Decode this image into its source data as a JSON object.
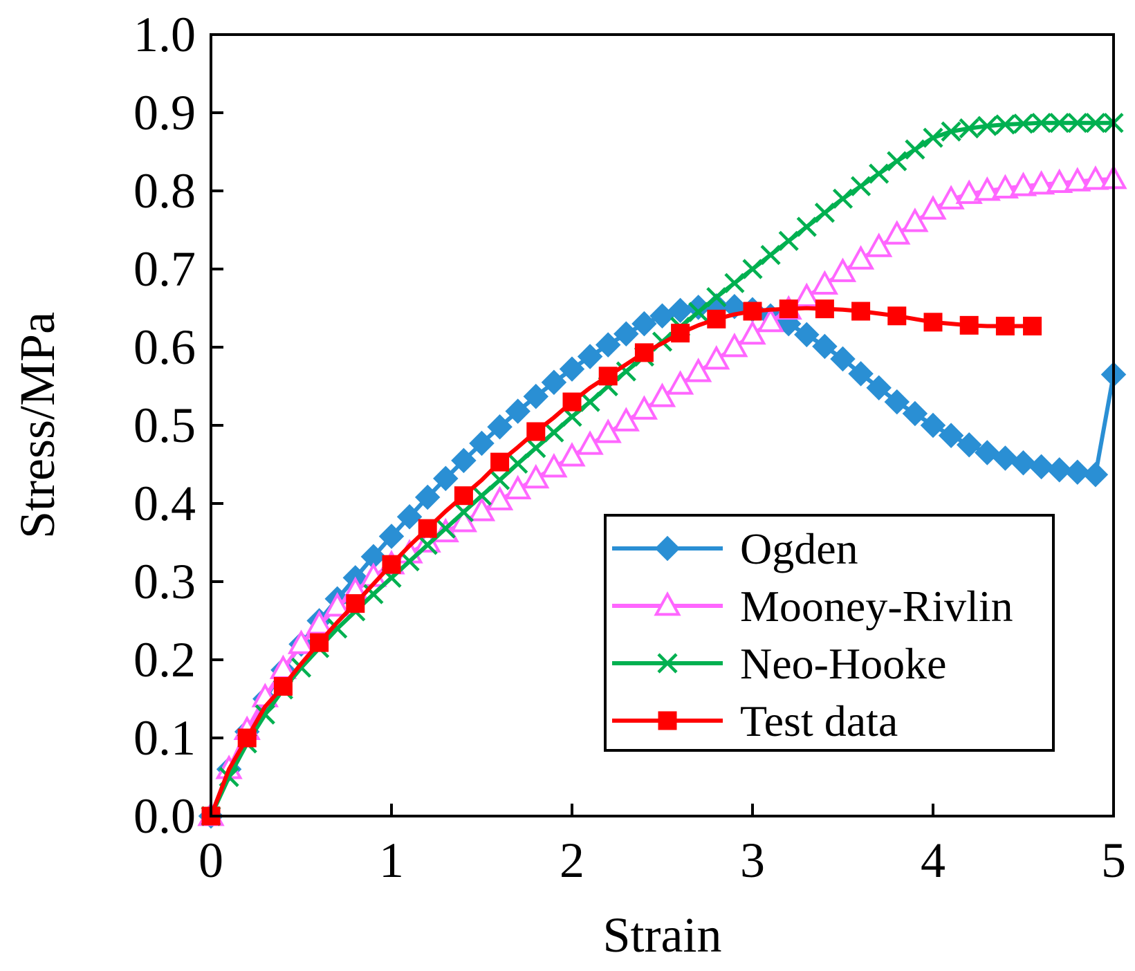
{
  "chart_data": {
    "type": "line",
    "title": "",
    "xlabel": "Strain",
    "ylabel": "Stress/MPa",
    "xlim": [
      0,
      5
    ],
    "ylim": [
      0,
      1.0
    ],
    "xticks": [
      0,
      1,
      2,
      3,
      4,
      5
    ],
    "yticks": [
      0.0,
      0.1,
      0.2,
      0.3,
      0.4,
      0.5,
      0.6,
      0.7,
      0.8,
      0.9,
      1.0
    ],
    "xtick_labels": [
      "0",
      "1",
      "2",
      "3",
      "4",
      "5"
    ],
    "ytick_labels": [
      "0.0",
      "0.1",
      "0.2",
      "0.3",
      "0.4",
      "0.5",
      "0.6",
      "0.7",
      "0.8",
      "0.9",
      "1.0"
    ],
    "grid": false,
    "legend_position": "bottom-right",
    "series": [
      {
        "name": "Ogden",
        "color": "#2a8fd4",
        "marker": "diamond",
        "x": [
          0,
          0.1,
          0.2,
          0.3,
          0.4,
          0.5,
          0.6,
          0.7,
          0.8,
          0.9,
          1.0,
          1.1,
          1.2,
          1.3,
          1.4,
          1.5,
          1.6,
          1.7,
          1.8,
          1.9,
          2.0,
          2.1,
          2.2,
          2.3,
          2.4,
          2.5,
          2.6,
          2.7,
          2.8,
          2.9,
          3.0,
          3.1,
          3.2,
          3.3,
          3.4,
          3.5,
          3.6,
          3.7,
          3.8,
          3.9,
          4.0,
          4.1,
          4.2,
          4.3,
          4.4,
          4.5,
          4.6,
          4.7,
          4.8,
          4.9,
          5.0
        ],
        "y": [
          0.0,
          0.06,
          0.108,
          0.15,
          0.187,
          0.22,
          0.25,
          0.278,
          0.305,
          0.332,
          0.358,
          0.383,
          0.408,
          0.432,
          0.455,
          0.477,
          0.498,
          0.518,
          0.537,
          0.555,
          0.572,
          0.588,
          0.603,
          0.617,
          0.63,
          0.64,
          0.647,
          0.651,
          0.653,
          0.652,
          0.648,
          0.64,
          0.63,
          0.616,
          0.601,
          0.585,
          0.566,
          0.548,
          0.53,
          0.515,
          0.5,
          0.487,
          0.475,
          0.465,
          0.458,
          0.452,
          0.447,
          0.443,
          0.44,
          0.437,
          0.565
        ]
      },
      {
        "name": "Mooney-Rivlin",
        "color": "#ff66ff",
        "marker": "triangle-open",
        "x": [
          0,
          0.1,
          0.2,
          0.3,
          0.4,
          0.5,
          0.6,
          0.7,
          0.8,
          0.9,
          1.0,
          1.1,
          1.2,
          1.3,
          1.4,
          1.5,
          1.6,
          1.7,
          1.8,
          1.9,
          2.0,
          2.1,
          2.2,
          2.3,
          2.4,
          2.5,
          2.6,
          2.7,
          2.8,
          2.9,
          3.0,
          3.1,
          3.2,
          3.3,
          3.4,
          3.5,
          3.6,
          3.7,
          3.8,
          3.9,
          4.0,
          4.1,
          4.2,
          4.3,
          4.4,
          4.5,
          4.6,
          4.7,
          4.8,
          4.9,
          5.0
        ],
        "y": [
          0.0,
          0.06,
          0.11,
          0.152,
          0.188,
          0.22,
          0.245,
          0.268,
          0.288,
          0.306,
          0.322,
          0.336,
          0.35,
          0.363,
          0.376,
          0.39,
          0.404,
          0.418,
          0.432,
          0.446,
          0.46,
          0.475,
          0.49,
          0.505,
          0.52,
          0.536,
          0.552,
          0.568,
          0.584,
          0.6,
          0.616,
          0.632,
          0.648,
          0.664,
          0.68,
          0.696,
          0.712,
          0.728,
          0.744,
          0.76,
          0.776,
          0.789,
          0.796,
          0.8,
          0.803,
          0.806,
          0.808,
          0.81,
          0.812,
          0.814,
          0.815
        ]
      },
      {
        "name": "Neo-Hooke",
        "color": "#00b050",
        "marker": "x",
        "x": [
          0,
          0.1,
          0.2,
          0.3,
          0.4,
          0.5,
          0.6,
          0.7,
          0.8,
          0.9,
          1.0,
          1.1,
          1.2,
          1.3,
          1.4,
          1.5,
          1.6,
          1.7,
          1.8,
          1.9,
          2.0,
          2.1,
          2.2,
          2.3,
          2.4,
          2.5,
          2.6,
          2.7,
          2.8,
          2.9,
          3.0,
          3.1,
          3.2,
          3.3,
          3.4,
          3.5,
          3.6,
          3.7,
          3.8,
          3.9,
          4.0,
          4.1,
          4.2,
          4.3,
          4.4,
          4.5,
          4.6,
          4.7,
          4.8,
          4.9,
          5.0
        ],
        "y": [
          0.0,
          0.05,
          0.093,
          0.13,
          0.162,
          0.19,
          0.215,
          0.24,
          0.262,
          0.284,
          0.305,
          0.326,
          0.347,
          0.368,
          0.389,
          0.41,
          0.43,
          0.451,
          0.471,
          0.491,
          0.511,
          0.53,
          0.55,
          0.569,
          0.588,
          0.607,
          0.626,
          0.645,
          0.664,
          0.682,
          0.7,
          0.718,
          0.736,
          0.754,
          0.772,
          0.79,
          0.806,
          0.822,
          0.838,
          0.853,
          0.868,
          0.876,
          0.88,
          0.883,
          0.885,
          0.886,
          0.887,
          0.887,
          0.887,
          0.887,
          0.887
        ]
      },
      {
        "name": "Test data",
        "color": "#ff0000",
        "marker": "square",
        "x": [
          0,
          0.1,
          0.2,
          0.3,
          0.4,
          0.5,
          0.6,
          0.7,
          0.8,
          0.9,
          1.0,
          1.1,
          1.2,
          1.3,
          1.4,
          1.5,
          1.6,
          1.7,
          1.8,
          1.9,
          2.0,
          2.1,
          2.2,
          2.3,
          2.4,
          2.5,
          2.6,
          2.7,
          2.8,
          2.9,
          3.0,
          3.1,
          3.2,
          3.3,
          3.4,
          3.5,
          3.6,
          3.7,
          3.8,
          3.9,
          4.0,
          4.1,
          4.2,
          4.3,
          4.4,
          4.5,
          4.55
        ],
        "y": [
          0.0,
          0.06,
          0.1,
          0.14,
          0.166,
          0.195,
          0.222,
          0.248,
          0.272,
          0.297,
          0.322,
          0.346,
          0.368,
          0.39,
          0.41,
          0.43,
          0.453,
          0.472,
          0.492,
          0.51,
          0.53,
          0.548,
          0.563,
          0.578,
          0.593,
          0.605,
          0.618,
          0.628,
          0.636,
          0.642,
          0.646,
          0.648,
          0.649,
          0.65,
          0.649,
          0.648,
          0.646,
          0.643,
          0.64,
          0.636,
          0.632,
          0.63,
          0.628,
          0.627,
          0.627,
          0.627,
          0.627
        ]
      }
    ]
  }
}
